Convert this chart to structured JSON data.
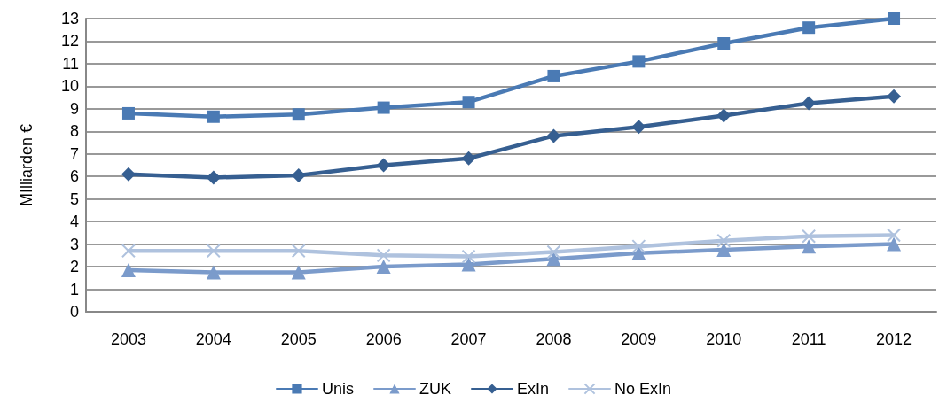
{
  "chart_data": {
    "type": "line",
    "ylabel": "MIlliarden €",
    "categories": [
      "2003",
      "2004",
      "2005",
      "2006",
      "2007",
      "2008",
      "2009",
      "2010",
      "2011",
      "2012"
    ],
    "series": [
      {
        "name": "Unis",
        "color": "#4a7ab4",
        "marker": "square",
        "values": [
          8.8,
          8.65,
          8.75,
          9.05,
          9.3,
          10.45,
          11.1,
          11.9,
          12.6,
          13.0
        ]
      },
      {
        "name": "ZUK",
        "color": "#7b9bcb",
        "marker": "triangle",
        "values": [
          1.85,
          1.75,
          1.75,
          2.0,
          2.1,
          2.35,
          2.6,
          2.75,
          2.9,
          3.0
        ]
      },
      {
        "name": "ExIn",
        "color": "#365f91",
        "marker": "diamond",
        "values": [
          6.1,
          5.95,
          6.05,
          6.5,
          6.8,
          7.8,
          8.2,
          8.7,
          9.25,
          9.55
        ]
      },
      {
        "name": "No ExIn",
        "color": "#afc2de",
        "marker": "cross",
        "values": [
          2.7,
          2.7,
          2.7,
          2.5,
          2.45,
          2.65,
          2.9,
          3.15,
          3.35,
          3.4
        ]
      }
    ],
    "ylim": [
      0,
      13
    ],
    "yticks": [
      0,
      1,
      2,
      3,
      4,
      5,
      6,
      7,
      8,
      9,
      10,
      11,
      12,
      13
    ],
    "grid": "y",
    "legend": "bottom",
    "line_style": "solid"
  }
}
